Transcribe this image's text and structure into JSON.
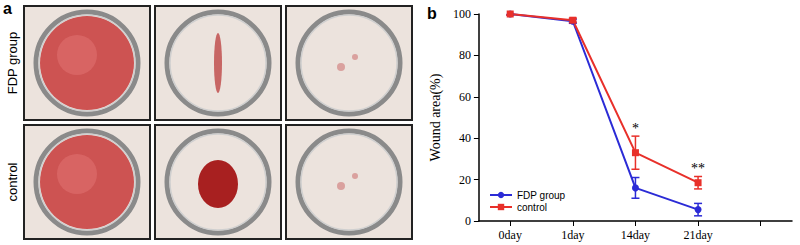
{
  "panel_a": {
    "label": "a",
    "rows": [
      "FDP group",
      "control"
    ]
  },
  "chart_data": {
    "type": "line",
    "title": "b",
    "categories": [
      "0day",
      "1day",
      "14day",
      "21day",
      null
    ],
    "y_label": "Wound area(%)",
    "series": [
      {
        "name": "FDP group",
        "color": "#2b2bd6",
        "marker": "circle",
        "values": [
          100,
          96.5,
          16,
          5.5,
          null
        ],
        "errors": [
          0.5,
          1,
          5,
          3,
          null
        ]
      },
      {
        "name": "control",
        "color": "#e8302a",
        "marker": "square",
        "values": [
          100,
          97,
          33,
          18.5,
          null
        ],
        "errors": [
          0.5,
          1,
          8,
          3,
          null
        ]
      }
    ],
    "annotations": [
      {
        "text": "*",
        "category": "14day",
        "series": "control"
      },
      {
        "text": "**",
        "category": "21day",
        "series": "control"
      }
    ],
    "ylim": [
      0,
      100
    ],
    "yticks": [
      0,
      20,
      40,
      60,
      80,
      100
    ],
    "grid": false,
    "legend": "lower left"
  }
}
